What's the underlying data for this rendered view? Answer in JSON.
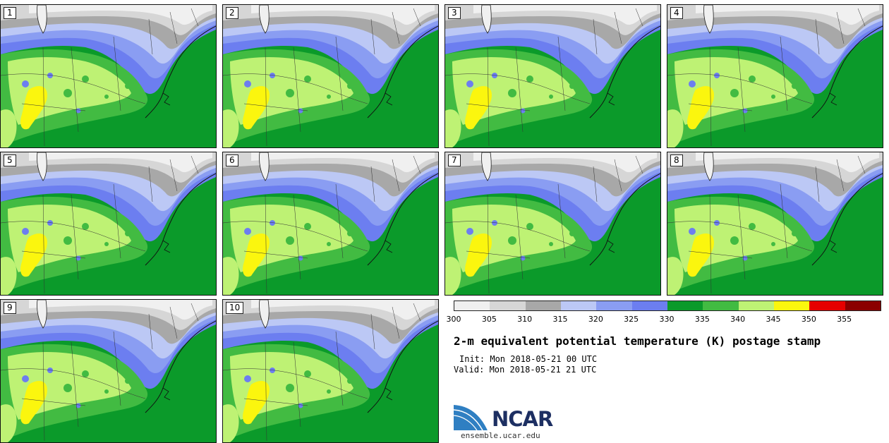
{
  "panels": [
    "1",
    "2",
    "3",
    "4",
    "5",
    "6",
    "7",
    "8",
    "9",
    "10"
  ],
  "colorbar": {
    "colors": [
      "#f0f0f0",
      "#d6d6d6",
      "#a8a8a8",
      "#bcc8f5",
      "#8a9df2",
      "#6c7ef0",
      "#0b9a2a",
      "#42bb42",
      "#bef274",
      "#fbf60e",
      "#e60000",
      "#8b0000"
    ],
    "ticks": [
      "300",
      "305",
      "310",
      "315",
      "320",
      "325",
      "330",
      "335",
      "340",
      "345",
      "350",
      "355"
    ]
  },
  "title": "2-m equivalent potential temperature (K) postage stamp",
  "init": "Init: Mon 2018-05-21 00 UTC",
  "valid": "Valid: Mon 2018-05-21 21 UTC",
  "logo": {
    "name": "NCAR"
  },
  "site": "ensemble.ucar.edu"
}
